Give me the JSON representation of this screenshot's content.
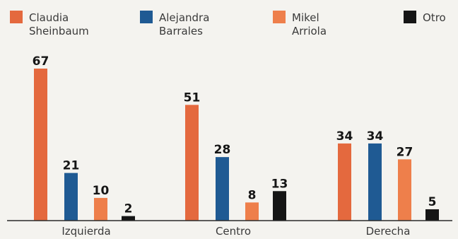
{
  "chart_data": {
    "type": "bar",
    "categories": [
      "Izquierda",
      "Centro",
      "Derecha"
    ],
    "series": [
      {
        "name": "Claudia Sheinbaum",
        "name_lines": [
          "Claudia",
          "Sheinbaum"
        ],
        "color": "#e4693e",
        "values": [
          67,
          51,
          34
        ]
      },
      {
        "name": "Alejandra Barrales",
        "name_lines": [
          "Alejandra",
          "Barrales"
        ],
        "color": "#1f5a93",
        "values": [
          21,
          28,
          34
        ]
      },
      {
        "name": "Mikel Arriola",
        "name_lines": [
          "Mikel",
          "Arriola"
        ],
        "color": "#ee7f4b",
        "values": [
          10,
          8,
          27
        ]
      },
      {
        "name": "Otro",
        "name_lines": [
          "Otro"
        ],
        "color": "#151515",
        "values": [
          2,
          13,
          5
        ]
      }
    ],
    "ylim": [
      0,
      67
    ],
    "legend_position": "top",
    "grid": false
  }
}
